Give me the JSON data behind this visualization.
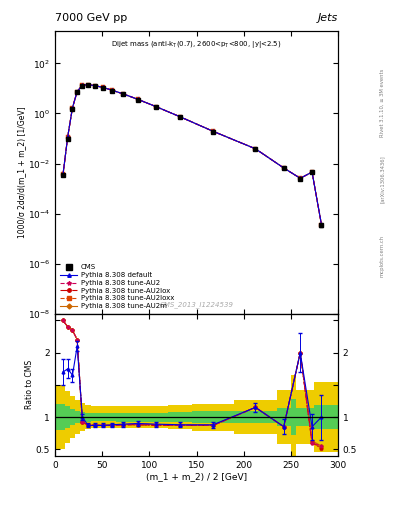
{
  "title_top": "7000 GeV pp",
  "title_right": "Jets",
  "xlabel": "(m_1 + m_2) / 2 [GeV]",
  "ylabel_main": "1000/σ 2dσ/d(m_1 + m_2) [1/GeV]",
  "ylabel_ratio": "Ratio to CMS",
  "watermark": "CMS_2013_I1224539",
  "rivet_label": "Rivet 3.1.10, ≥ 3M events",
  "arxiv_label": "[arXiv:1306.3436]",
  "mcplots_label": "mcplots.cern.ch",
  "x_data": [
    8.5,
    13.5,
    18.5,
    23.5,
    29.0,
    35.0,
    42.0,
    50.5,
    60.5,
    72.5,
    87.5,
    107.5,
    132.5,
    167.5,
    212.5,
    242.5,
    260.0,
    272.5,
    282.5
  ],
  "cms_y": [
    0.0035,
    0.1,
    1.5,
    7.0,
    13.0,
    13.5,
    12.5,
    10.5,
    8.0,
    5.8,
    3.5,
    1.8,
    0.72,
    0.19,
    0.038,
    0.0065,
    0.0025,
    0.0045,
    3.5e-05
  ],
  "cms_yerr": [
    0.0003,
    0.015,
    0.15,
    0.5,
    0.8,
    0.8,
    0.7,
    0.6,
    0.4,
    0.3,
    0.18,
    0.09,
    0.036,
    0.01,
    0.002,
    0.0003,
    0.00015,
    0.0003,
    5e-06
  ],
  "pythia_y": [
    0.0038,
    0.12,
    1.7,
    7.5,
    13.5,
    14.0,
    13.0,
    11.0,
    8.5,
    6.0,
    3.7,
    1.85,
    0.74,
    0.195,
    0.039,
    0.0067,
    0.0026,
    0.0046,
    3.7e-05
  ],
  "ratio_x": [
    8.5,
    13.5,
    18.5,
    23.5,
    29.0,
    35.0,
    42.0,
    50.5,
    60.5,
    72.5,
    87.5,
    107.5,
    132.5,
    167.5,
    212.5,
    242.5,
    260.0,
    272.5,
    282.5
  ],
  "ratio_default": [
    1.7,
    1.75,
    1.65,
    2.1,
    1.0,
    0.87,
    0.87,
    0.87,
    0.88,
    0.89,
    0.9,
    0.89,
    0.88,
    0.88,
    1.15,
    0.85,
    2.0,
    0.85,
    1.0
  ],
  "ratio_au2": [
    2.5,
    2.4,
    2.35,
    2.2,
    0.92,
    0.875,
    0.875,
    0.87,
    0.87,
    0.88,
    0.89,
    0.88,
    0.87,
    0.87,
    1.15,
    0.85,
    2.0,
    0.6,
    0.55
  ],
  "ratio_au2lox": [
    2.5,
    2.4,
    2.35,
    2.2,
    0.92,
    0.875,
    0.875,
    0.87,
    0.87,
    0.88,
    0.88,
    0.87,
    0.87,
    0.87,
    1.15,
    0.85,
    2.0,
    0.6,
    0.52
  ],
  "ratio_au2loxx": [
    2.5,
    2.4,
    2.35,
    2.2,
    0.92,
    0.875,
    0.875,
    0.87,
    0.87,
    0.88,
    0.88,
    0.87,
    0.87,
    0.87,
    1.15,
    0.85,
    2.0,
    0.62,
    0.5
  ],
  "ratio_au2m": [
    2.5,
    2.4,
    2.35,
    2.2,
    0.92,
    0.875,
    0.875,
    0.87,
    0.87,
    0.88,
    0.89,
    0.88,
    0.87,
    0.87,
    1.15,
    0.85,
    2.0,
    0.63,
    0.55
  ],
  "ratio_default_err": [
    0.2,
    0.15,
    0.1,
    0.08,
    0.05,
    0.03,
    0.03,
    0.03,
    0.03,
    0.04,
    0.04,
    0.04,
    0.04,
    0.05,
    0.07,
    0.12,
    0.3,
    0.2,
    0.35
  ],
  "band_x_edges": [
    0,
    11,
    16,
    21,
    26,
    32,
    38,
    46,
    55,
    65,
    80,
    95,
    120,
    145,
    190,
    235,
    250,
    255,
    270,
    275,
    300
  ],
  "band_green": [
    0.2,
    0.17,
    0.13,
    0.1,
    0.08,
    0.07,
    0.065,
    0.065,
    0.065,
    0.07,
    0.07,
    0.07,
    0.08,
    0.09,
    0.1,
    0.14,
    0.28,
    0.14,
    0.14,
    0.18
  ],
  "band_yellow": [
    0.5,
    0.4,
    0.32,
    0.27,
    0.22,
    0.18,
    0.17,
    0.17,
    0.17,
    0.17,
    0.17,
    0.17,
    0.18,
    0.21,
    0.26,
    0.42,
    0.65,
    0.42,
    0.42,
    0.55
  ],
  "color_default": "#0000dd",
  "color_au2": "#cc0055",
  "color_au2lox": "#cc0000",
  "color_au2loxx": "#dd4400",
  "color_au2m": "#cc6600",
  "color_cms": "#000000",
  "color_green_band": "#55cc55",
  "color_yellow_band": "#eecc00",
  "ylim_main": [
    1e-08,
    2000.0
  ],
  "ylim_ratio": [
    0.4,
    2.6
  ],
  "xlim": [
    0,
    300
  ],
  "background_color": "#ffffff"
}
